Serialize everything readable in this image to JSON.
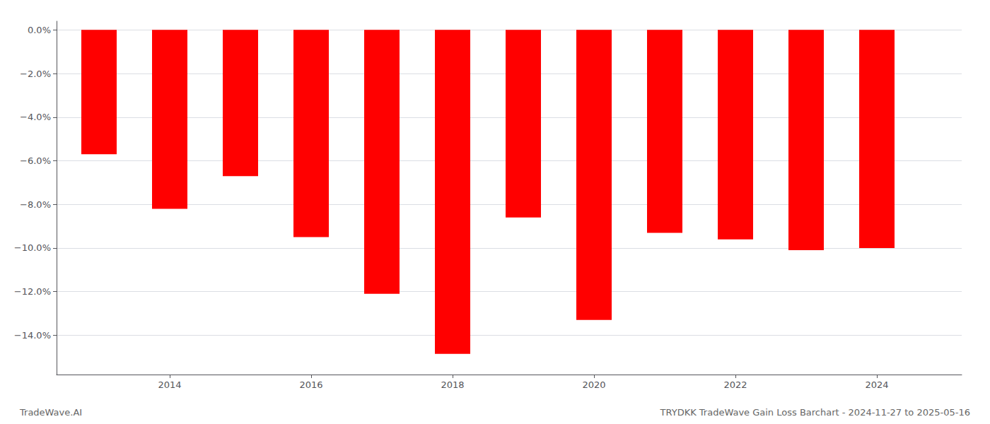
{
  "chart_data": {
    "type": "bar",
    "x": [
      2013,
      2014,
      2015,
      2016,
      2017,
      2018,
      2019,
      2020,
      2021,
      2022,
      2023,
      2024
    ],
    "values": [
      -5.7,
      -8.2,
      -6.7,
      -9.5,
      -12.1,
      -14.85,
      -8.6,
      -13.3,
      -9.3,
      -9.6,
      -10.1,
      -10.0
    ],
    "color": "#ff0000",
    "xlim": [
      2012.4,
      2025.2
    ],
    "xticks": [
      2014,
      2016,
      2018,
      2020,
      2022,
      2024
    ],
    "ylim": [
      -15.8,
      0.4
    ],
    "yticks": [
      {
        "value": 0.0,
        "label": "0.0%"
      },
      {
        "value": -2.0,
        "label": "−2.0%"
      },
      {
        "value": -4.0,
        "label": "−4.0%"
      },
      {
        "value": -6.0,
        "label": "−6.0%"
      },
      {
        "value": -8.0,
        "label": "−8.0%"
      },
      {
        "value": -10.0,
        "label": "−10.0%"
      },
      {
        "value": -12.0,
        "label": "−12.0%"
      },
      {
        "value": -14.0,
        "label": "−14.0%"
      }
    ],
    "grid": true,
    "annotations": [
      "TradeWave.AI",
      "TRYDKK TradeWave Gain Loss Barchart - 2024-11-27 to 2025-05-16"
    ]
  }
}
